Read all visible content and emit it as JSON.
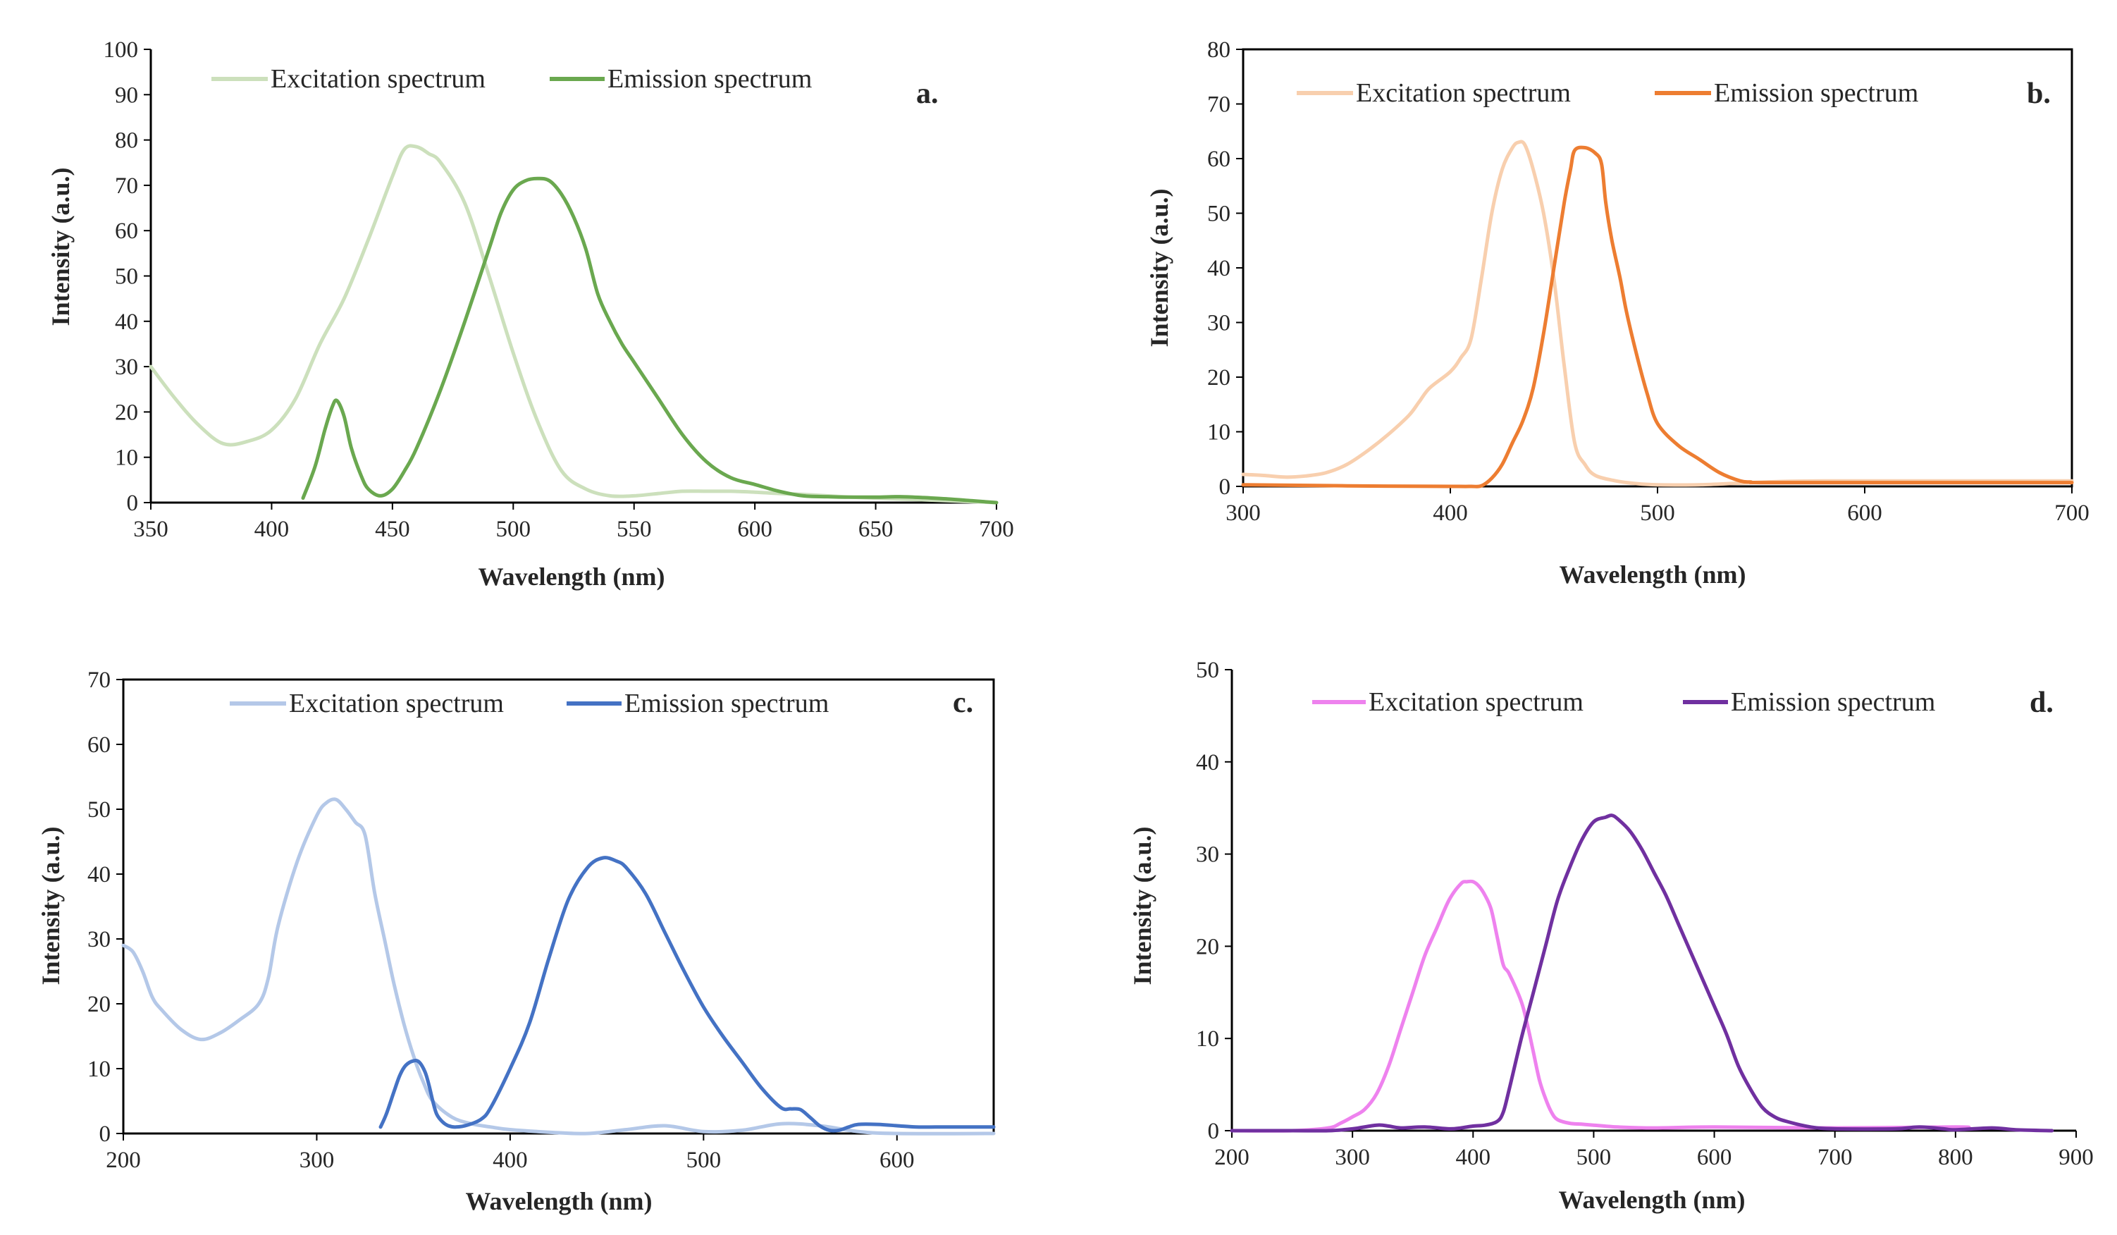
{
  "figure": {
    "charts": [
      {
        "id": "a",
        "label": "a.",
        "xlabel": "Wavelength (nm)",
        "ylabel": "Intensity (a.u.)",
        "xlim": [
          350,
          700
        ],
        "ylim": [
          0,
          100
        ],
        "xticks": [
          350,
          400,
          450,
          500,
          550,
          600,
          650,
          700
        ],
        "yticks": [
          0,
          10,
          20,
          30,
          40,
          50,
          60,
          70,
          80,
          90,
          100
        ],
        "frame": "left-bottom",
        "series": [
          {
            "name": "Excitation spectrum",
            "color": "#cce0bc"
          },
          {
            "name": "Emission spectrum",
            "color": "#6aa84f"
          }
        ]
      },
      {
        "id": "b",
        "label": "b.",
        "xlabel": "Wavelength (nm)",
        "ylabel": "Intensity (a.u.)",
        "xlim": [
          300,
          700
        ],
        "ylim": [
          0,
          80
        ],
        "xticks": [
          300,
          400,
          500,
          600,
          700
        ],
        "yticks": [
          0,
          10,
          20,
          30,
          40,
          50,
          60,
          70,
          80
        ],
        "frame": "box",
        "series": [
          {
            "name": "Excitation spectrum",
            "color": "#f8cfae"
          },
          {
            "name": "Emission spectrum",
            "color": "#ed7d31"
          }
        ]
      },
      {
        "id": "c",
        "label": "c.",
        "xlabel": "Wavelength (nm)",
        "ylabel": "Intensity (a.u.)",
        "xlim": [
          200,
          650
        ],
        "ylim": [
          0,
          70
        ],
        "xticks": [
          200,
          300,
          400,
          500,
          600
        ],
        "yticks": [
          0,
          10,
          20,
          30,
          40,
          50,
          60,
          70
        ],
        "frame": "box",
        "series": [
          {
            "name": "Excitation spectrum",
            "color": "#b4c8e8"
          },
          {
            "name": "Emission spectrum",
            "color": "#4472c4"
          }
        ]
      },
      {
        "id": "d",
        "label": "d.",
        "xlabel": "Wavelength (nm)",
        "ylabel": "Intensity (a.u.)",
        "xlim": [
          200,
          900
        ],
        "ylim": [
          0,
          50
        ],
        "xticks": [
          200,
          300,
          400,
          500,
          600,
          700,
          800,
          900
        ],
        "yticks": [
          0,
          10,
          20,
          30,
          40,
          50
        ],
        "frame": "left-bottom",
        "series": [
          {
            "name": "Excitation spectrum",
            "color": "#ee82ee"
          },
          {
            "name": "Emission spectrum",
            "color": "#7030a0"
          }
        ]
      }
    ]
  },
  "chart_data": [
    {
      "type": "line",
      "label": "a.",
      "xlabel": "Wavelength (nm)",
      "ylabel": "Intensity (a.u.)",
      "xlim": [
        350,
        700
      ],
      "ylim": [
        0,
        100
      ],
      "grid": false,
      "legend": "top",
      "series": [
        {
          "name": "Excitation spectrum",
          "x": [
            350,
            360,
            370,
            380,
            390,
            400,
            410,
            420,
            430,
            440,
            450,
            455,
            460,
            465,
            470,
            480,
            490,
            500,
            510,
            520,
            530,
            540,
            550,
            560,
            570,
            580,
            590,
            600,
            610,
            620,
            630,
            640,
            650,
            660,
            670,
            680,
            690,
            700
          ],
          "y": [
            30,
            23,
            17,
            13,
            13.5,
            16,
            23,
            35,
            45,
            58,
            72,
            78,
            78.5,
            77,
            75,
            66,
            50,
            33,
            18,
            7,
            3,
            1.5,
            1.5,
            2,
            2.5,
            2.5,
            2.5,
            2.3,
            2,
            1.8,
            1.5,
            1.2,
            1,
            0.8,
            0.6,
            0.4,
            0.2,
            0
          ]
        },
        {
          "name": "Emission spectrum",
          "x": [
            413,
            418,
            422,
            425,
            427,
            430,
            433,
            437,
            440,
            445,
            450,
            455,
            460,
            470,
            480,
            490,
            495,
            500,
            505,
            510,
            515,
            520,
            525,
            530,
            535,
            540,
            545,
            550,
            560,
            570,
            580,
            590,
            600,
            610,
            620,
            630,
            640,
            650,
            660,
            670,
            680,
            690,
            700
          ],
          "y": [
            1,
            8,
            16,
            21,
            22.5,
            19,
            12,
            6,
            3,
            1.5,
            3,
            7,
            12,
            25,
            40,
            56,
            64,
            69,
            71,
            71.5,
            71,
            68,
            63,
            56,
            46,
            40,
            35,
            31,
            23,
            15,
            9,
            5.5,
            4,
            2.5,
            1.5,
            1.3,
            1.2,
            1.2,
            1.3,
            1.1,
            0.8,
            0.4,
            0
          ]
        }
      ]
    },
    {
      "type": "line",
      "label": "b.",
      "xlabel": "Wavelength (nm)",
      "ylabel": "Intensity (a.u.)",
      "xlim": [
        300,
        700
      ],
      "ylim": [
        0,
        80
      ],
      "grid": false,
      "legend": "top",
      "series": [
        {
          "name": "Excitation spectrum",
          "x": [
            300,
            310,
            320,
            330,
            340,
            350,
            360,
            370,
            380,
            385,
            390,
            400,
            405,
            410,
            415,
            420,
            425,
            430,
            433,
            436,
            440,
            445,
            450,
            455,
            460,
            465,
            470,
            480,
            490,
            500,
            520,
            540,
            560,
            580,
            600,
            650,
            700
          ],
          "y": [
            2.2,
            2,
            1.7,
            1.9,
            2.5,
            4,
            6.5,
            9.5,
            13,
            15.5,
            18,
            21,
            23.5,
            27,
            38,
            50,
            58,
            62,
            63,
            62.5,
            58,
            50,
            38,
            22,
            8,
            4,
            2,
            1,
            0.5,
            0.3,
            0.3,
            0.6,
            0.9,
            1,
            1,
            1,
            1
          ]
        },
        {
          "name": "Emission spectrum",
          "x": [
            300,
            350,
            400,
            410,
            415,
            420,
            425,
            430,
            435,
            440,
            445,
            450,
            455,
            458,
            460,
            465,
            470,
            473,
            475,
            478,
            482,
            485,
            490,
            495,
            500,
            510,
            520,
            530,
            540,
            545,
            550,
            600,
            650,
            700
          ],
          "y": [
            0.3,
            0.1,
            0,
            0,
            0.1,
            1.5,
            4,
            8,
            12,
            18,
            28,
            40,
            52,
            58,
            61.5,
            62,
            61,
            59,
            52,
            45,
            38,
            32,
            24,
            17,
            11.5,
            7.5,
            5,
            2.5,
            1,
            0.8,
            0.7,
            0.7,
            0.7,
            0.7
          ]
        }
      ]
    },
    {
      "type": "line",
      "label": "c.",
      "xlabel": "Wavelength (nm)",
      "ylabel": "Intensity (a.u.)",
      "xlim": [
        200,
        650
      ],
      "ylim": [
        0,
        70
      ],
      "grid": false,
      "legend": "top",
      "series": [
        {
          "name": "Excitation spectrum",
          "x": [
            200,
            205,
            210,
            215,
            220,
            230,
            240,
            250,
            260,
            270,
            275,
            280,
            290,
            300,
            305,
            310,
            315,
            320,
            325,
            330,
            335,
            340,
            345,
            350,
            355,
            360,
            370,
            380,
            390,
            400,
            420,
            440,
            460,
            480,
            500,
            520,
            540,
            560,
            580,
            600,
            650
          ],
          "y": [
            29,
            28,
            25,
            21,
            19,
            16,
            14.5,
            15.5,
            17.5,
            20,
            24,
            32,
            42,
            49,
            51,
            51.5,
            50,
            48,
            46,
            37,
            30,
            23,
            17,
            12,
            8,
            5,
            2.5,
            1.5,
            1,
            0.6,
            0.2,
            0,
            0.6,
            1.2,
            0.3,
            0.5,
            1.5,
            1.2,
            0.3,
            0,
            0
          ]
        },
        {
          "name": "Emission spectrum",
          "x": [
            333,
            336,
            340,
            343,
            346,
            350,
            353,
            356,
            358,
            360,
            362,
            365,
            368,
            372,
            378,
            385,
            390,
            400,
            410,
            420,
            430,
            440,
            448,
            455,
            460,
            470,
            480,
            490,
            500,
            510,
            520,
            530,
            540,
            545,
            550,
            555,
            560,
            565,
            570,
            575,
            580,
            590,
            600,
            610,
            620,
            630,
            640,
            650
          ],
          "y": [
            1,
            3,
            6.5,
            9,
            10.5,
            11.2,
            11,
            9.5,
            7.5,
            5,
            3,
            1.8,
            1.2,
            1,
            1.3,
            2.2,
            4,
            10,
            17,
            27,
            36,
            41,
            42.5,
            42,
            41,
            37,
            31,
            25,
            19.5,
            15,
            11,
            7,
            4,
            3.8,
            3.7,
            2.5,
            1.2,
            0.5,
            0.5,
            1,
            1.4,
            1.4,
            1.2,
            1,
            1,
            1,
            1,
            1
          ]
        }
      ]
    },
    {
      "type": "line",
      "label": "d.",
      "xlabel": "Wavelength (nm)",
      "ylabel": "Intensity (a.u.)",
      "xlim": [
        200,
        900
      ],
      "ylim": [
        0,
        50
      ],
      "grid": false,
      "legend": "top",
      "series": [
        {
          "name": "Excitation spectrum",
          "x": [
            200,
            250,
            280,
            290,
            300,
            310,
            320,
            330,
            340,
            350,
            360,
            370,
            380,
            390,
            395,
            400,
            405,
            410,
            415,
            420,
            425,
            430,
            440,
            445,
            450,
            455,
            460,
            465,
            470,
            480,
            490,
            500,
            520,
            550,
            600,
            700,
            800,
            810
          ],
          "y": [
            0,
            0,
            0.3,
            0.8,
            1.5,
            2.3,
            4,
            7,
            11,
            15,
            19,
            22,
            25,
            26.8,
            27,
            27,
            26.5,
            25.5,
            24,
            21,
            18,
            17,
            14,
            11.5,
            8.5,
            5.5,
            3.5,
            2,
            1.2,
            0.8,
            0.7,
            0.6,
            0.4,
            0.3,
            0.4,
            0.3,
            0.4,
            0.3
          ]
        },
        {
          "name": "Emission spectrum",
          "x": [
            200,
            250,
            280,
            300,
            320,
            330,
            340,
            360,
            380,
            390,
            400,
            410,
            420,
            425,
            430,
            440,
            450,
            460,
            470,
            480,
            490,
            500,
            510,
            515,
            520,
            530,
            540,
            550,
            560,
            570,
            580,
            590,
            600,
            610,
            620,
            630,
            640,
            650,
            660,
            680,
            700,
            750,
            770,
            790,
            800,
            830,
            850,
            880
          ],
          "y": [
            0,
            0,
            0,
            0.2,
            0.6,
            0.5,
            0.3,
            0.4,
            0.2,
            0.3,
            0.5,
            0.6,
            1,
            2,
            4.5,
            10,
            15,
            20,
            25,
            28.5,
            31.5,
            33.5,
            34,
            34.2,
            33.8,
            32.5,
            30.5,
            28,
            25.5,
            22.5,
            19.5,
            16.5,
            13.5,
            10.5,
            7,
            4.5,
            2.5,
            1.5,
            1,
            0.4,
            0.2,
            0.2,
            0.4,
            0.2,
            0.1,
            0.3,
            0.1,
            0
          ]
        }
      ]
    }
  ]
}
